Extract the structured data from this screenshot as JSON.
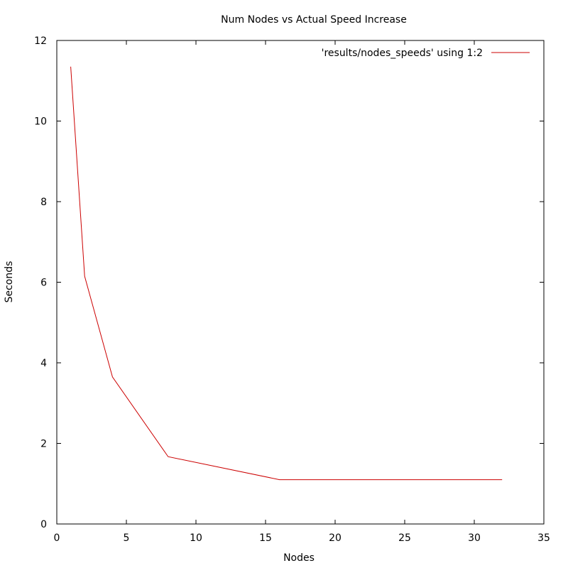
{
  "chart_data": {
    "type": "line",
    "title": "Num Nodes vs Actual Speed Increase",
    "xlabel": "Nodes",
    "ylabel": "Seconds",
    "xlim": [
      0,
      35
    ],
    "ylim": [
      0,
      12
    ],
    "xticks": [
      0,
      5,
      10,
      15,
      20,
      25,
      30,
      35
    ],
    "yticks": [
      0,
      2,
      4,
      6,
      8,
      10,
      12
    ],
    "grid": false,
    "legend_position": "top-right",
    "series": [
      {
        "name": "'results/nodes_speeds' using 1:2",
        "color": "#cc0000",
        "x": [
          1,
          2,
          4,
          8,
          16,
          32
        ],
        "y": [
          11.35,
          6.15,
          3.65,
          1.67,
          1.1,
          1.1
        ]
      }
    ]
  }
}
